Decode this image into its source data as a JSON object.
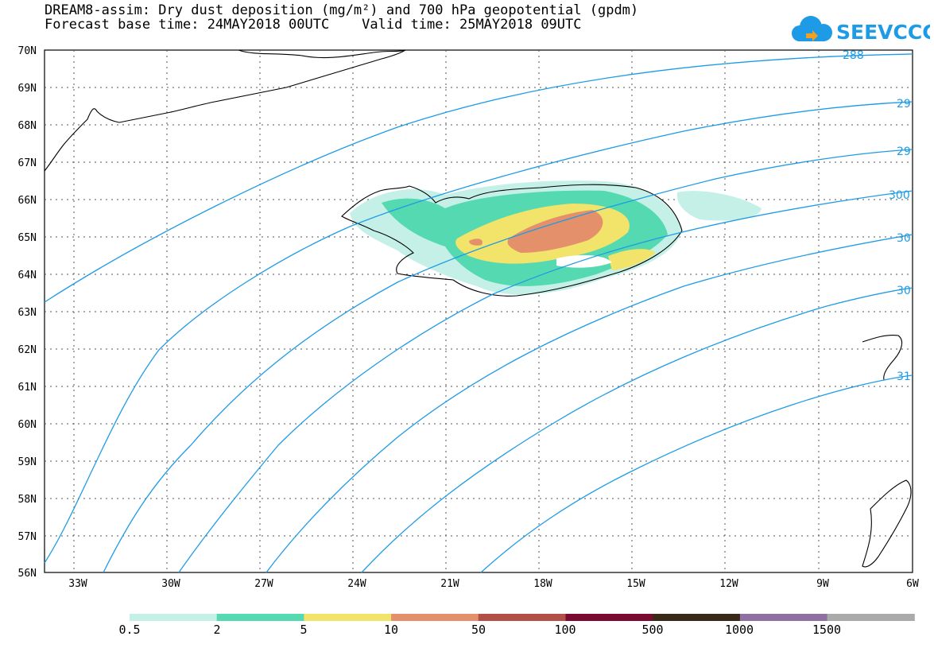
{
  "header": {
    "title_line1": "DREAM8-assim: Dry dust deposition (mg/m²) and 700 hPa geopotential (gpdm)",
    "title_line2": "Forecast base time: 24MAY2018 00UTC    Valid time: 25MAY2018 09UTC",
    "logo_text": "SEEVCCC",
    "logo_color": "#1e9be6"
  },
  "axes": {
    "lat_labels": [
      "70N",
      "69N",
      "68N",
      "67N",
      "66N",
      "65N",
      "64N",
      "63N",
      "62N",
      "61N",
      "60N",
      "59N",
      "58N",
      "57N",
      "56N"
    ],
    "lon_labels": [
      "33W",
      "30W",
      "27W",
      "24W",
      "21W",
      "18W",
      "15W",
      "12W",
      "9W",
      "6W"
    ]
  },
  "contours": {
    "color": "#1e9be6",
    "labels": [
      "288",
      "29",
      "29",
      "300",
      "30",
      "30",
      "31"
    ]
  },
  "colorbar": {
    "colors": [
      "#c4f0e8",
      "#55d9b0",
      "#f2e36a",
      "#e4906a",
      "#b05046",
      "#7a0a30",
      "#3a2818",
      "#9070a0",
      "#aaaaaa"
    ],
    "labels": [
      "0.5",
      "2",
      "5",
      "10",
      "50",
      "100",
      "500",
      "1000",
      "1500"
    ]
  }
}
